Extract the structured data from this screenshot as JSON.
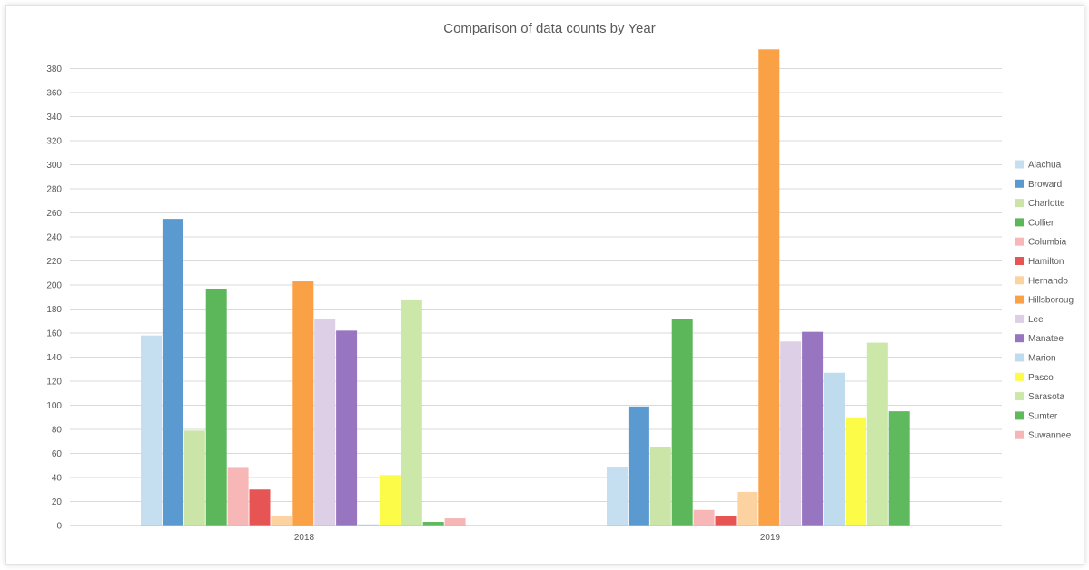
{
  "chart_data": {
    "type": "bar",
    "title": "Comparison of data counts by Year",
    "xlabel": "",
    "ylabel": "",
    "categories": [
      "2018",
      "2019"
    ],
    "ylim": [
      0,
      380
    ],
    "yticks": [
      0,
      20,
      40,
      60,
      80,
      100,
      120,
      140,
      160,
      180,
      200,
      220,
      240,
      260,
      280,
      300,
      320,
      340,
      360,
      380
    ],
    "grid": true,
    "legend_position": "right",
    "series": [
      {
        "name": "Alachua",
        "color": "#c6dff0",
        "values": [
          158,
          49
        ]
      },
      {
        "name": "Broward",
        "color": "#5a9ad0",
        "values": [
          255,
          99
        ]
      },
      {
        "name": "Charlotte",
        "color": "#cbe5a8",
        "values": [
          79,
          65
        ]
      },
      {
        "name": "Collier",
        "color": "#5cb75a",
        "values": [
          197,
          172
        ]
      },
      {
        "name": "Columbia",
        "color": "#f8b7b7",
        "values": [
          48,
          13
        ]
      },
      {
        "name": "Hamilton",
        "color": "#e65454",
        "values": [
          30,
          8
        ]
      },
      {
        "name": "Hernando",
        "color": "#fbd2a0",
        "values": [
          8,
          28
        ]
      },
      {
        "name": "Hillsborough",
        "color": "#fba145",
        "values": [
          203,
          396
        ]
      },
      {
        "name": "Lee",
        "color": "#dccfe6",
        "values": [
          172,
          153
        ]
      },
      {
        "name": "Manatee",
        "color": "#9775c0",
        "values": [
          162,
          161
        ]
      },
      {
        "name": "Marion",
        "color": "#bfdcef",
        "values": [
          1,
          127
        ]
      },
      {
        "name": "Pasco",
        "color": "#fcfb47",
        "values": [
          42,
          90
        ]
      },
      {
        "name": "Sarasota",
        "color": "#cbe8a8",
        "values": [
          188,
          152
        ]
      },
      {
        "name": "Sumter",
        "color": "#5fb95d",
        "values": [
          3,
          95
        ]
      },
      {
        "name": "Suwannee",
        "color": "#f6b6b6",
        "values": [
          6,
          null
        ]
      }
    ]
  },
  "legend_labels": [
    "Alachua",
    "Broward",
    "Charlotte",
    "Collier",
    "Columbia",
    "Hamilton",
    "Hernando",
    "Hillsboroug",
    "Lee",
    "Manatee",
    "Marion",
    "Pasco",
    "Sarasota",
    "Sumter",
    "Suwannee"
  ]
}
